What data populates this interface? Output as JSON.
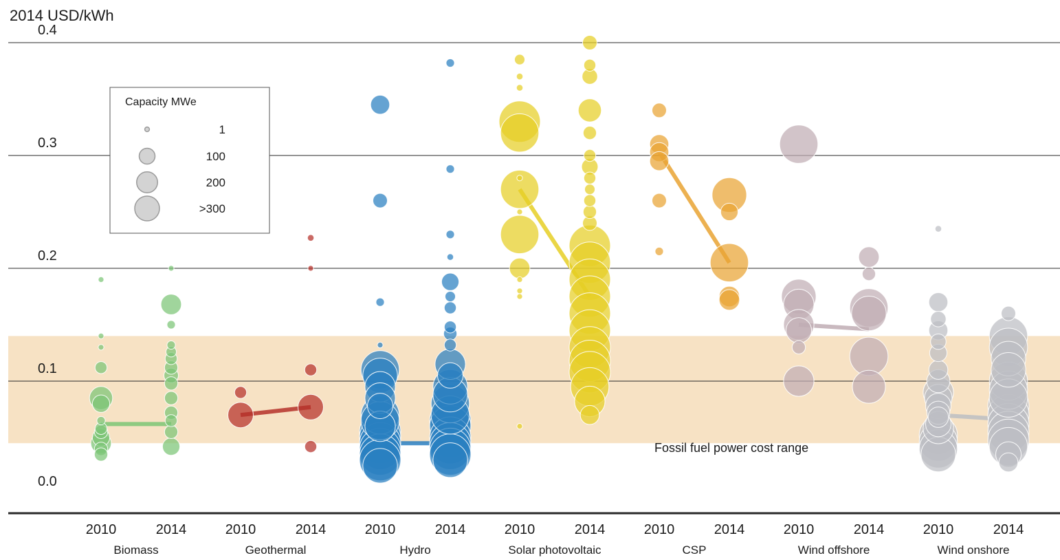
{
  "chart_data": {
    "type": "scatter",
    "y_unit_label": "2014 USD/kWh",
    "ylim": [
      0.0,
      0.4
    ],
    "y_ticks": [
      "0.0",
      "0.1",
      "0.2",
      "0.3",
      "0.4"
    ],
    "grid": true,
    "band": {
      "label": "Fossil fuel power cost range",
      "y_range": [
        0.045,
        0.14
      ],
      "color": "#f7e2c4"
    },
    "legend": {
      "title": "Capacity MWe",
      "placement": "top-left",
      "entries": [
        {
          "label": "1",
          "capacity": 1
        },
        {
          "label": "100",
          "capacity": 100
        },
        {
          "label": "200",
          "capacity": 200
        },
        {
          "label": ">300",
          "capacity": 300
        }
      ]
    },
    "categories": [
      {
        "name": "Biomass",
        "color": "#7cc576",
        "years": [
          {
            "year": "2010",
            "avg": 0.062,
            "points": [
              [
                0.19,
                1
              ],
              [
                0.14,
                1
              ],
              [
                0.13,
                1
              ],
              [
                0.112,
                15
              ],
              [
                0.085,
                80
              ],
              [
                0.08,
                40
              ],
              [
                0.065,
                5
              ],
              [
                0.058,
                15
              ],
              [
                0.055,
                20
              ],
              [
                0.05,
                40
              ],
              [
                0.045,
                60
              ],
              [
                0.04,
                20
              ],
              [
                0.035,
                20
              ]
            ]
          },
          {
            "year": "2014",
            "avg": 0.062,
            "points": [
              [
                0.2,
                1
              ],
              [
                0.168,
                60
              ],
              [
                0.15,
                5
              ],
              [
                0.132,
                5
              ],
              [
                0.126,
                10
              ],
              [
                0.12,
                15
              ],
              [
                0.112,
                20
              ],
              [
                0.105,
                25
              ],
              [
                0.098,
                20
              ],
              [
                0.085,
                20
              ],
              [
                0.072,
                20
              ],
              [
                0.065,
                15
              ],
              [
                0.055,
                20
              ],
              [
                0.042,
                40
              ]
            ]
          }
        ]
      },
      {
        "name": "Geothermal",
        "color": "#b5312a",
        "years": [
          {
            "year": "2010",
            "avg": 0.07,
            "points": [
              [
                0.09,
                15
              ],
              [
                0.07,
                100
              ]
            ]
          },
          {
            "year": "2014",
            "avg": 0.077,
            "points": [
              [
                0.227,
                2
              ],
              [
                0.2,
                1
              ],
              [
                0.11,
                15
              ],
              [
                0.077,
                100
              ],
              [
                0.042,
                15
              ]
            ]
          }
        ]
      },
      {
        "name": "Hydro",
        "color": "#2a7fc1",
        "years": [
          {
            "year": "2010",
            "avg": 0.045,
            "points": [
              [
                0.345,
                50
              ],
              [
                0.26,
                25
              ],
              [
                0.17,
                5
              ],
              [
                0.132,
                1
              ],
              [
                0.11,
                250
              ],
              [
                0.105,
                200
              ],
              [
                0.095,
                150
              ],
              [
                0.085,
                150
              ],
              [
                0.078,
                100
              ],
              [
                0.07,
                250
              ],
              [
                0.065,
                250
              ],
              [
                0.06,
                150
              ],
              [
                0.055,
                300
              ],
              [
                0.05,
                300
              ],
              [
                0.045,
                300
              ],
              [
                0.04,
                300
              ],
              [
                0.035,
                300
              ],
              [
                0.03,
                300
              ],
              [
                0.025,
                200
              ]
            ]
          },
          {
            "year": "2014",
            "avg": 0.045,
            "points": [
              [
                0.382,
                5
              ],
              [
                0.288,
                5
              ],
              [
                0.23,
                5
              ],
              [
                0.21,
                2
              ],
              [
                0.188,
                40
              ],
              [
                0.175,
                10
              ],
              [
                0.165,
                15
              ],
              [
                0.148,
                15
              ],
              [
                0.142,
                20
              ],
              [
                0.132,
                15
              ],
              [
                0.115,
                150
              ],
              [
                0.105,
                100
              ],
              [
                0.095,
                200
              ],
              [
                0.088,
                200
              ],
              [
                0.08,
                250
              ],
              [
                0.07,
                250
              ],
              [
                0.065,
                300
              ],
              [
                0.06,
                300
              ],
              [
                0.05,
                300
              ],
              [
                0.045,
                300
              ],
              [
                0.04,
                300
              ],
              [
                0.035,
                300
              ],
              [
                0.03,
                200
              ]
            ]
          }
        ]
      },
      {
        "name": "Solar photovoltaic",
        "color": "#e6cf25",
        "years": [
          {
            "year": "2010",
            "avg": 0.27,
            "points": [
              [
                0.385,
                10
              ],
              [
                0.37,
                2
              ],
              [
                0.36,
                2
              ],
              [
                0.33,
                300
              ],
              [
                0.32,
                250
              ],
              [
                0.27,
                250
              ],
              [
                0.23,
                250
              ],
              [
                0.2,
                60
              ],
              [
                0.28,
                1
              ],
              [
                0.25,
                1
              ],
              [
                0.19,
                1
              ],
              [
                0.18,
                1
              ],
              [
                0.175,
                1
              ],
              [
                0.06,
                1
              ]
            ]
          },
          {
            "year": "2014",
            "avg": 0.175,
            "points": [
              [
                0.4,
                25
              ],
              [
                0.38,
                15
              ],
              [
                0.37,
                30
              ],
              [
                0.34,
                80
              ],
              [
                0.32,
                20
              ],
              [
                0.3,
                15
              ],
              [
                0.29,
                35
              ],
              [
                0.28,
                15
              ],
              [
                0.27,
                10
              ],
              [
                0.26,
                15
              ],
              [
                0.25,
                20
              ],
              [
                0.24,
                25
              ],
              [
                0.22,
                300
              ],
              [
                0.205,
                300
              ],
              [
                0.19,
                300
              ],
              [
                0.175,
                300
              ],
              [
                0.16,
                300
              ],
              [
                0.145,
                300
              ],
              [
                0.13,
                300
              ],
              [
                0.118,
                300
              ],
              [
                0.108,
                300
              ],
              [
                0.095,
                250
              ],
              [
                0.082,
                150
              ],
              [
                0.07,
                50
              ]
            ]
          }
        ]
      },
      {
        "name": "CSP",
        "color": "#e9a333",
        "years": [
          {
            "year": "2010",
            "avg": 0.303,
            "points": [
              [
                0.34,
                25
              ],
              [
                0.31,
                50
              ],
              [
                0.303,
                50
              ],
              [
                0.295,
                50
              ],
              [
                0.26,
                25
              ],
              [
                0.215,
                5
              ]
            ]
          },
          {
            "year": "2014",
            "avg": 0.205,
            "points": [
              [
                0.265,
                200
              ],
              [
                0.25,
                40
              ],
              [
                0.205,
                250
              ],
              [
                0.175,
                60
              ],
              [
                0.172,
                60
              ]
            ]
          }
        ]
      },
      {
        "name": "Wind offshore",
        "color": "#c0adb4",
        "years": [
          {
            "year": "2010",
            "avg": 0.15,
            "points": [
              [
                0.31,
                250
              ],
              [
                0.175,
                200
              ],
              [
                0.168,
                150
              ],
              [
                0.15,
                150
              ],
              [
                0.145,
                100
              ],
              [
                0.13,
                20
              ],
              [
                0.1,
                150
              ]
            ]
          },
          {
            "year": "2014",
            "avg": 0.146,
            "points": [
              [
                0.21,
                60
              ],
              [
                0.195,
                20
              ],
              [
                0.165,
                250
              ],
              [
                0.16,
                200
              ],
              [
                0.122,
                250
              ],
              [
                0.095,
                180
              ]
            ]
          }
        ]
      },
      {
        "name": "Wind onshore",
        "color": "#bcbec3",
        "years": [
          {
            "year": "2010",
            "avg": 0.07,
            "points": [
              [
                0.235,
                2
              ],
              [
                0.17,
                50
              ],
              [
                0.155,
                30
              ],
              [
                0.145,
                50
              ],
              [
                0.135,
                30
              ],
              [
                0.125,
                40
              ],
              [
                0.11,
                50
              ],
              [
                0.1,
                80
              ],
              [
                0.09,
                150
              ],
              [
                0.085,
                120
              ],
              [
                0.078,
                100
              ],
              [
                0.072,
                80
              ],
              [
                0.068,
                60
              ],
              [
                0.062,
                100
              ],
              [
                0.058,
                150
              ],
              [
                0.052,
                250
              ],
              [
                0.046,
                250
              ],
              [
                0.04,
                250
              ],
              [
                0.035,
                200
              ]
            ]
          },
          {
            "year": "2014",
            "avg": 0.066,
            "points": [
              [
                0.16,
                25
              ],
              [
                0.14,
                250
              ],
              [
                0.13,
                250
              ],
              [
                0.12,
                200
              ],
              [
                0.11,
                200
              ],
              [
                0.1,
                250
              ],
              [
                0.092,
                250
              ],
              [
                0.085,
                250
              ],
              [
                0.078,
                300
              ],
              [
                0.07,
                300
              ],
              [
                0.062,
                300
              ],
              [
                0.055,
                300
              ],
              [
                0.048,
                300
              ],
              [
                0.042,
                250
              ],
              [
                0.035,
                100
              ],
              [
                0.028,
                50
              ]
            ]
          }
        ]
      }
    ]
  }
}
